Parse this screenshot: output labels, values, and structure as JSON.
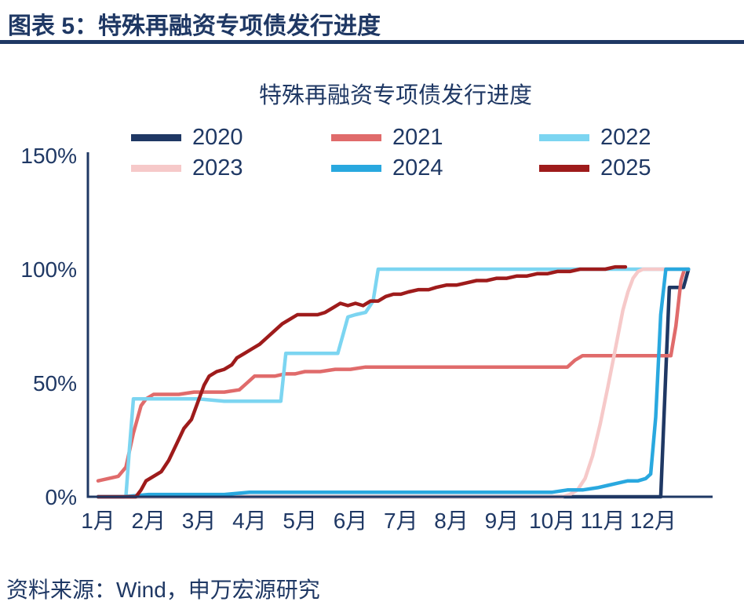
{
  "header": {
    "title": "图表 5：特殊再融资专项债发行进度"
  },
  "chart": {
    "title": "特殊再融资专项债发行进度"
  },
  "footer": {
    "source": "资料来源：Wind，申万宏源研究"
  },
  "colors": {
    "accent_navy": "#1F3864",
    "axis": "#1F3864",
    "rule": "#1F3864",
    "background": "#FFFFFF"
  },
  "chart_data": {
    "type": "line",
    "title": "特殊再融资专项债发行进度",
    "grid": false,
    "legend_position": "top",
    "x_axis": {
      "unit": "month",
      "tick_labels": [
        "1月",
        "2月",
        "3月",
        "4月",
        "5月",
        "6月",
        "7月",
        "8月",
        "9月",
        "10月",
        "11月",
        "12月"
      ],
      "range": [
        1,
        12.7
      ]
    },
    "y_axis": {
      "range": [
        0,
        150
      ],
      "ticks": [
        {
          "value": 0,
          "label": "0%"
        },
        {
          "value": 50,
          "label": "50%"
        },
        {
          "value": 100,
          "label": "100%"
        },
        {
          "value": 150,
          "label": "150%"
        }
      ]
    },
    "series": [
      {
        "name": "2020",
        "color": "#1F3864",
        "points": [
          [
            1,
            0
          ],
          [
            2,
            0
          ],
          [
            3,
            0
          ],
          [
            4,
            0
          ],
          [
            5,
            0
          ],
          [
            6,
            0
          ],
          [
            7,
            0
          ],
          [
            8,
            0
          ],
          [
            9,
            0
          ],
          [
            10,
            0
          ],
          [
            11,
            0
          ],
          [
            12.15,
            0
          ],
          [
            12.25,
            55
          ],
          [
            12.32,
            92
          ],
          [
            12.6,
            92
          ],
          [
            12.7,
            100
          ]
        ]
      },
      {
        "name": "2021",
        "color": "#E06B6B",
        "points": [
          [
            1,
            7
          ],
          [
            1.2,
            8
          ],
          [
            1.4,
            9
          ],
          [
            1.55,
            13
          ],
          [
            1.7,
            28
          ],
          [
            1.85,
            40
          ],
          [
            1.95,
            43
          ],
          [
            2.1,
            45
          ],
          [
            2.3,
            45
          ],
          [
            2.6,
            45
          ],
          [
            2.9,
            46
          ],
          [
            3.2,
            46
          ],
          [
            3.5,
            46
          ],
          [
            3.8,
            47
          ],
          [
            3.95,
            50
          ],
          [
            4.1,
            53
          ],
          [
            4.3,
            53
          ],
          [
            4.5,
            53
          ],
          [
            4.7,
            54
          ],
          [
            4.9,
            54
          ],
          [
            5.1,
            55
          ],
          [
            5.4,
            55
          ],
          [
            5.7,
            56
          ],
          [
            6.0,
            56
          ],
          [
            6.3,
            57
          ],
          [
            6.6,
            57
          ],
          [
            7.0,
            57
          ],
          [
            7.5,
            57
          ],
          [
            8.0,
            57
          ],
          [
            8.5,
            57
          ],
          [
            9.0,
            57
          ],
          [
            9.5,
            57
          ],
          [
            10.0,
            57
          ],
          [
            10.3,
            57
          ],
          [
            10.45,
            60
          ],
          [
            10.6,
            62
          ],
          [
            11.0,
            62
          ],
          [
            11.5,
            62
          ],
          [
            12.0,
            62
          ],
          [
            12.35,
            62
          ],
          [
            12.45,
            75
          ],
          [
            12.55,
            95
          ],
          [
            12.62,
            100
          ],
          [
            12.7,
            100
          ]
        ]
      },
      {
        "name": "2022",
        "color": "#7CD5F1",
        "points": [
          [
            1,
            0
          ],
          [
            1.55,
            0
          ],
          [
            1.62,
            21
          ],
          [
            1.7,
            43
          ],
          [
            2.0,
            43
          ],
          [
            2.5,
            43
          ],
          [
            3.0,
            43
          ],
          [
            3.5,
            42
          ],
          [
            4.0,
            42
          ],
          [
            4.5,
            42
          ],
          [
            4.62,
            42
          ],
          [
            4.72,
            63
          ],
          [
            5.0,
            63
          ],
          [
            5.4,
            63
          ],
          [
            5.75,
            63
          ],
          [
            5.85,
            71
          ],
          [
            5.95,
            79
          ],
          [
            6.1,
            80
          ],
          [
            6.3,
            81
          ],
          [
            6.45,
            86
          ],
          [
            6.55,
            100
          ],
          [
            7.0,
            100
          ],
          [
            8.0,
            100
          ],
          [
            9.0,
            100
          ],
          [
            10.0,
            100
          ],
          [
            11.0,
            100
          ],
          [
            12.0,
            100
          ],
          [
            12.7,
            100
          ]
        ]
      },
      {
        "name": "2023",
        "color": "#F6C9C9",
        "points": [
          [
            1,
            0
          ],
          [
            2,
            0
          ],
          [
            3,
            0
          ],
          [
            4,
            0
          ],
          [
            5,
            0
          ],
          [
            6,
            0
          ],
          [
            7,
            0
          ],
          [
            8,
            0
          ],
          [
            9,
            0
          ],
          [
            10.0,
            0
          ],
          [
            10.2,
            0
          ],
          [
            10.35,
            1
          ],
          [
            10.5,
            3
          ],
          [
            10.65,
            8
          ],
          [
            10.8,
            18
          ],
          [
            10.95,
            32
          ],
          [
            11.1,
            48
          ],
          [
            11.25,
            65
          ],
          [
            11.4,
            82
          ],
          [
            11.5,
            90
          ],
          [
            11.6,
            96
          ],
          [
            11.7,
            99
          ],
          [
            11.8,
            100
          ],
          [
            12.0,
            100
          ],
          [
            12.4,
            100
          ],
          [
            12.7,
            100
          ]
        ]
      },
      {
        "name": "2024",
        "color": "#29A8DF",
        "points": [
          [
            1,
            0
          ],
          [
            1.5,
            0
          ],
          [
            2.0,
            1
          ],
          [
            2.5,
            1
          ],
          [
            3.0,
            1
          ],
          [
            3.5,
            1
          ],
          [
            4.0,
            2
          ],
          [
            4.5,
            2
          ],
          [
            5.0,
            2
          ],
          [
            5.5,
            2
          ],
          [
            6.0,
            2
          ],
          [
            6.5,
            2
          ],
          [
            7.0,
            2
          ],
          [
            7.5,
            2
          ],
          [
            8.0,
            2
          ],
          [
            8.5,
            2
          ],
          [
            9.0,
            2
          ],
          [
            9.5,
            2
          ],
          [
            10.0,
            2
          ],
          [
            10.3,
            3
          ],
          [
            10.6,
            3
          ],
          [
            10.9,
            4
          ],
          [
            11.1,
            5
          ],
          [
            11.3,
            6
          ],
          [
            11.5,
            7
          ],
          [
            11.7,
            7
          ],
          [
            11.85,
            8
          ],
          [
            11.95,
            10
          ],
          [
            12.05,
            35
          ],
          [
            12.15,
            80
          ],
          [
            12.25,
            100
          ],
          [
            12.45,
            100
          ],
          [
            12.7,
            100
          ]
        ]
      },
      {
        "name": "2025",
        "color": "#9E1B1B",
        "points": [
          [
            1,
            0
          ],
          [
            1.75,
            0
          ],
          [
            1.85,
            3
          ],
          [
            1.95,
            7
          ],
          [
            2.1,
            9
          ],
          [
            2.25,
            11
          ],
          [
            2.4,
            16
          ],
          [
            2.55,
            23
          ],
          [
            2.7,
            30
          ],
          [
            2.85,
            34
          ],
          [
            3.0,
            43
          ],
          [
            3.1,
            49
          ],
          [
            3.2,
            53
          ],
          [
            3.35,
            55
          ],
          [
            3.5,
            56
          ],
          [
            3.65,
            58
          ],
          [
            3.75,
            61
          ],
          [
            3.9,
            63
          ],
          [
            4.05,
            65
          ],
          [
            4.2,
            67
          ],
          [
            4.35,
            70
          ],
          [
            4.5,
            73
          ],
          [
            4.65,
            76
          ],
          [
            4.8,
            78
          ],
          [
            4.95,
            80
          ],
          [
            5.15,
            80
          ],
          [
            5.35,
            80
          ],
          [
            5.5,
            81
          ],
          [
            5.65,
            83
          ],
          [
            5.8,
            85
          ],
          [
            5.95,
            84
          ],
          [
            6.1,
            85
          ],
          [
            6.25,
            84
          ],
          [
            6.4,
            86
          ],
          [
            6.55,
            86
          ],
          [
            6.7,
            88
          ],
          [
            6.85,
            89
          ],
          [
            7.0,
            89
          ],
          [
            7.15,
            90
          ],
          [
            7.35,
            91
          ],
          [
            7.55,
            91
          ],
          [
            7.7,
            92
          ],
          [
            7.9,
            93
          ],
          [
            8.1,
            93
          ],
          [
            8.3,
            94
          ],
          [
            8.5,
            95
          ],
          [
            8.7,
            95
          ],
          [
            8.9,
            96
          ],
          [
            9.1,
            96
          ],
          [
            9.3,
            97
          ],
          [
            9.5,
            97
          ],
          [
            9.7,
            98
          ],
          [
            9.9,
            98
          ],
          [
            10.1,
            99
          ],
          [
            10.35,
            99
          ],
          [
            10.55,
            100
          ],
          [
            10.8,
            100
          ],
          [
            11.05,
            100
          ],
          [
            11.25,
            101
          ],
          [
            11.45,
            101
          ]
        ]
      }
    ]
  }
}
